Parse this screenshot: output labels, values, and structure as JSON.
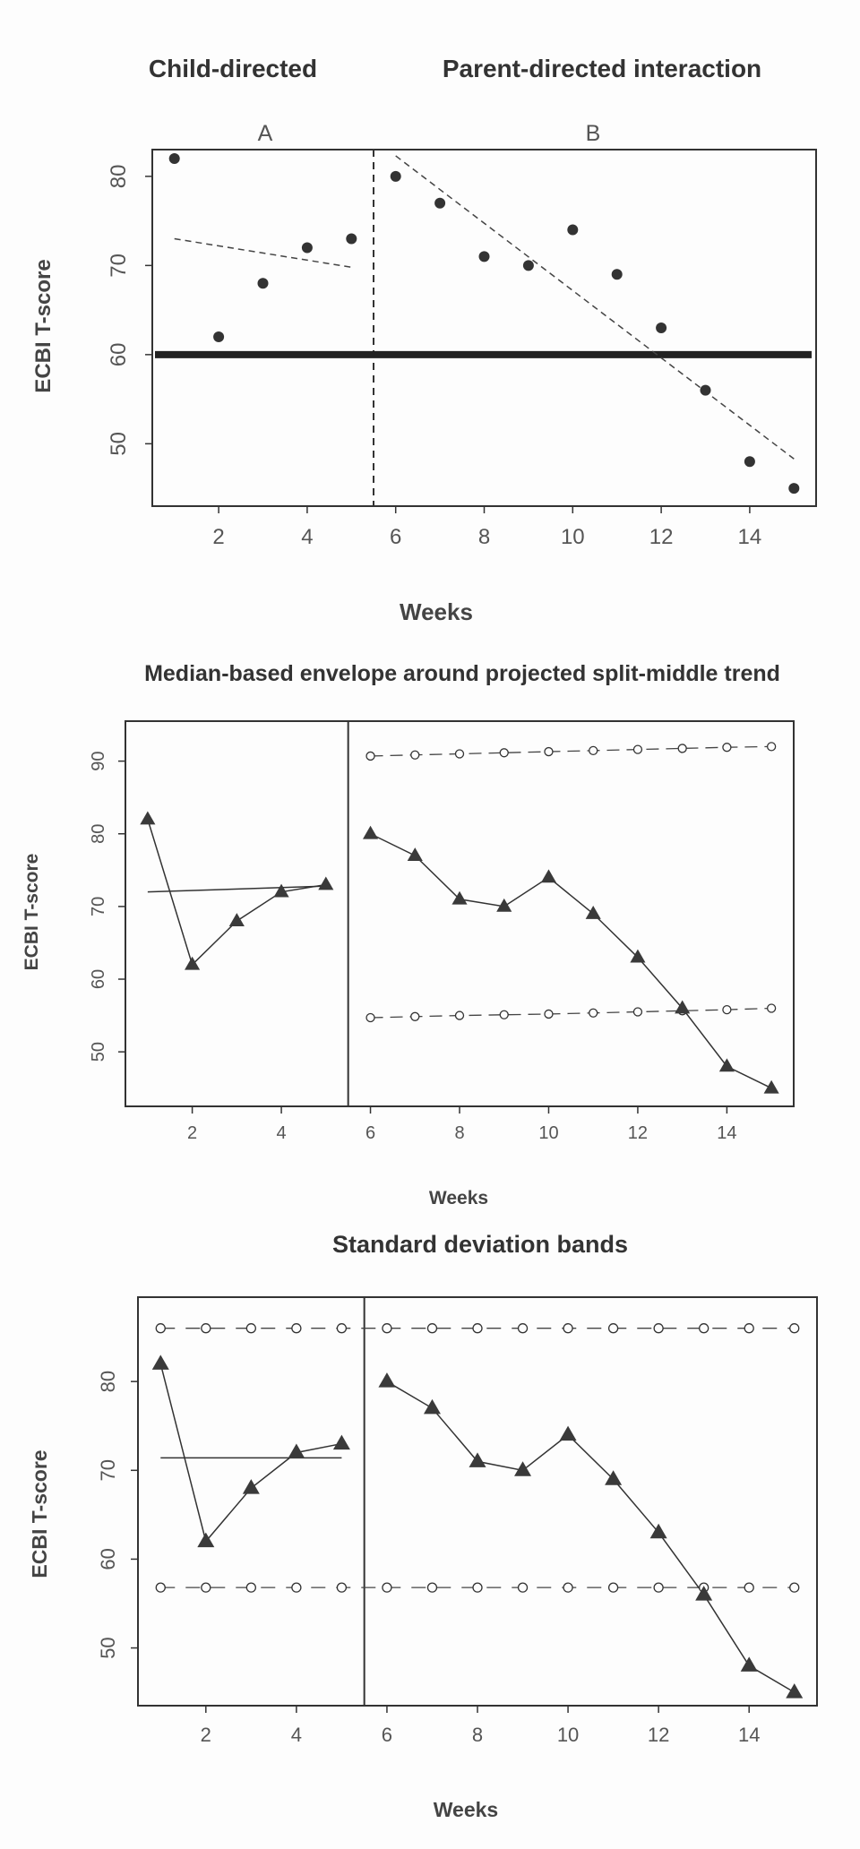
{
  "chart_data": [
    {
      "type": "scatter",
      "title_left": "Child-directed",
      "title_right": "Parent-directed interaction",
      "phase_labels": [
        "A",
        "B"
      ],
      "xlabel": "Weeks",
      "ylabel": "ECBI T-score",
      "xlim": [
        0.5,
        15.5
      ],
      "ylim": [
        43,
        83
      ],
      "xticks": [
        2,
        4,
        6,
        8,
        10,
        12,
        14
      ],
      "yticks": [
        50,
        60,
        70,
        80
      ],
      "phase_change": 5.5,
      "x": [
        1,
        2,
        3,
        4,
        5,
        6,
        7,
        8,
        9,
        10,
        11,
        12,
        13,
        14,
        15
      ],
      "y": [
        82,
        62,
        68,
        72,
        73,
        80,
        77,
        71,
        70,
        74,
        69,
        63,
        56,
        48,
        45
      ],
      "trend_a": [
        [
          1,
          73
        ],
        [
          5,
          69.8
        ]
      ],
      "trend_b": [
        [
          6,
          82.3
        ],
        [
          15,
          48.3
        ]
      ],
      "criterion": 60
    },
    {
      "type": "line",
      "title": "Median-based envelope around projected split-middle trend",
      "xlabel": "Weeks",
      "ylabel": "ECBI T-score",
      "xlim": [
        0.5,
        15.5
      ],
      "ylim": [
        42.5,
        95.5
      ],
      "xticks": [
        2,
        4,
        6,
        8,
        10,
        12,
        14
      ],
      "yticks": [
        50,
        60,
        70,
        80,
        90
      ],
      "phase_change": 5.5,
      "x": [
        1,
        2,
        3,
        4,
        5,
        6,
        7,
        8,
        9,
        10,
        11,
        12,
        13,
        14,
        15
      ],
      "y": [
        82,
        62,
        68,
        72,
        73,
        80,
        77,
        71,
        70,
        74,
        69,
        63,
        56,
        48,
        45
      ],
      "baseline_trend": [
        [
          1,
          72
        ],
        [
          5,
          72.8
        ]
      ],
      "envelope_x": [
        6,
        7,
        8,
        9,
        10,
        11,
        12,
        13,
        14,
        15
      ],
      "envelope_upper": [
        90.7,
        90.85,
        91,
        91.15,
        91.3,
        91.45,
        91.6,
        91.75,
        91.9,
        92
      ],
      "envelope_lower": [
        54.7,
        54.85,
        55,
        55.1,
        55.2,
        55.35,
        55.5,
        55.65,
        55.8,
        56
      ]
    },
    {
      "type": "line",
      "title": "Standard deviation bands",
      "xlabel": "Weeks",
      "ylabel": "ECBI T-score",
      "xlim": [
        0.5,
        15.5
      ],
      "ylim": [
        43.5,
        89.5
      ],
      "xticks": [
        2,
        4,
        6,
        8,
        10,
        12,
        14
      ],
      "yticks": [
        50,
        60,
        70,
        80
      ],
      "phase_change": 5.5,
      "x": [
        1,
        2,
        3,
        4,
        5,
        6,
        7,
        8,
        9,
        10,
        11,
        12,
        13,
        14,
        15
      ],
      "y": [
        82,
        62,
        68,
        72,
        73,
        80,
        77,
        71,
        70,
        74,
        69,
        63,
        56,
        48,
        45
      ],
      "baseline_mean": 71.4,
      "band_upper": 86,
      "band_lower": 56.8
    }
  ]
}
